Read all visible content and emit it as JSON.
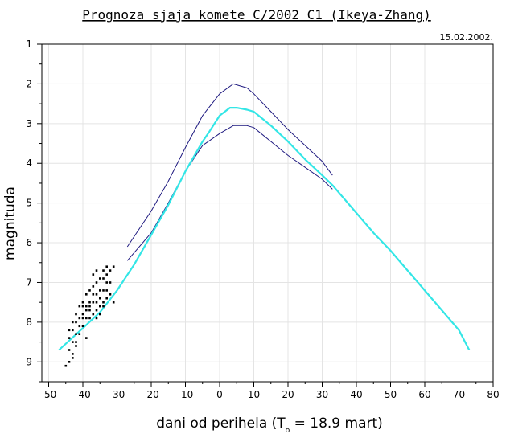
{
  "chart_data": {
    "type": "line",
    "title": "Prognoza sjaja komete C/2002 C1 (Ikeya-Zhang)",
    "date": "15.02.2002.",
    "xlabel_main": "dani od perihela (T",
    "xlabel_sub": "o",
    "xlabel_rest": " = 18.9 mart)",
    "ylabel": "magnituda",
    "xlim": [
      -52,
      80
    ],
    "ylim": [
      1,
      9.5
    ],
    "y_inverted": true,
    "grid": true,
    "x_ticks": [
      "-50",
      "-40",
      "-30",
      "-20",
      "-10",
      "0",
      "10",
      "20",
      "30",
      "40",
      "50",
      "60",
      "70",
      "80"
    ],
    "y_ticks": [
      "1",
      "2",
      "3",
      "4",
      "5",
      "6",
      "7",
      "8",
      "9"
    ],
    "colors": {
      "prediction": "#33e6e6",
      "bounds": "#1f1a80",
      "observations": "#000000",
      "grid": "#e4e4e4"
    },
    "series": [
      {
        "role": "prediction",
        "x": [
          -47,
          -40,
          -35,
          -30,
          -25,
          -20,
          -15,
          -10,
          -5,
          -3,
          0,
          3,
          5,
          8,
          10,
          15,
          20,
          25,
          30,
          33,
          35,
          40,
          45,
          50,
          55,
          60,
          65,
          70,
          73
        ],
        "y": [
          8.7,
          8.15,
          7.75,
          7.2,
          6.55,
          5.8,
          5.05,
          4.2,
          3.45,
          3.2,
          2.8,
          2.6,
          2.6,
          2.65,
          2.7,
          3.05,
          3.45,
          3.9,
          4.3,
          4.55,
          4.75,
          5.25,
          5.75,
          6.2,
          6.7,
          7.2,
          7.7,
          8.2,
          8.7
        ]
      },
      {
        "role": "upper-bound",
        "x": [
          -27,
          -20,
          -15,
          -10,
          -5,
          0,
          4,
          8,
          10,
          15,
          20,
          25,
          30,
          33
        ],
        "y": [
          6.1,
          5.2,
          4.45,
          3.6,
          2.8,
          2.25,
          2.0,
          2.1,
          2.25,
          2.7,
          3.15,
          3.55,
          3.95,
          4.3
        ]
      },
      {
        "role": "lower-bound",
        "x": [
          -27,
          -20,
          -15,
          -10,
          -5,
          0,
          4,
          8,
          10,
          15,
          20,
          25,
          30,
          33
        ],
        "y": [
          6.45,
          5.75,
          5.0,
          4.2,
          3.55,
          3.25,
          3.05,
          3.05,
          3.1,
          3.45,
          3.8,
          4.1,
          4.4,
          4.65
        ]
      }
    ],
    "observations": {
      "x": [
        -45,
        -44,
        -44,
        -44,
        -43,
        -43,
        -43,
        -43,
        -42,
        -42,
        -42,
        -42,
        -41,
        -41,
        -41,
        -40,
        -40,
        -40,
        -40,
        -39,
        -39,
        -39,
        -39,
        -38,
        -38,
        -38,
        -38,
        -37,
        -37,
        -37,
        -37,
        -37,
        -36,
        -36,
        -36,
        -36,
        -36,
        -35,
        -35,
        -35,
        -35,
        -34,
        -34,
        -34,
        -34,
        -33,
        -33,
        -33,
        -33,
        -33,
        -32,
        -32,
        -32,
        -31,
        -31,
        -44,
        -43,
        -42,
        -41,
        -40,
        -39,
        -38,
        -36,
        -35,
        -34
      ],
      "y": [
        9.1,
        9.0,
        8.7,
        8.4,
        8.8,
        8.5,
        8.2,
        8.0,
        8.6,
        8.3,
        8.0,
        7.8,
        8.3,
        7.9,
        7.6,
        8.1,
        7.8,
        7.6,
        7.5,
        8.4,
        7.9,
        7.6,
        7.3,
        7.9,
        7.7,
        7.5,
        7.2,
        7.8,
        7.5,
        7.3,
        7.1,
        6.8,
        7.7,
        7.5,
        7.3,
        7.0,
        6.7,
        7.6,
        7.4,
        7.2,
        6.9,
        7.5,
        7.2,
        6.9,
        6.7,
        7.4,
        7.2,
        7.0,
        6.8,
        6.6,
        7.3,
        7.0,
        6.7,
        7.5,
        6.6,
        8.2,
        8.9,
        8.5,
        8.1,
        7.9,
        7.7,
        7.6,
        7.9,
        7.8,
        7.6
      ]
    }
  }
}
